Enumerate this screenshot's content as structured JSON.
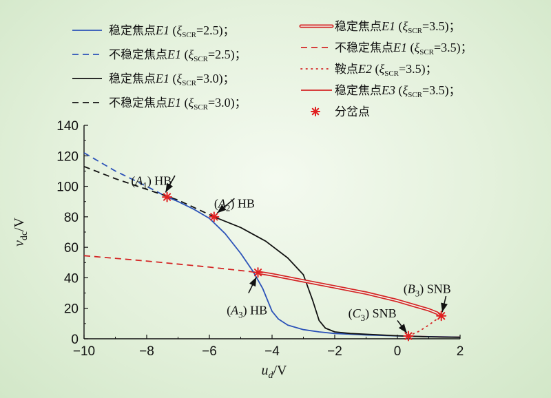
{
  "chart_data": {
    "type": "line",
    "xlabel": "u_d/V",
    "ylabel": "v_dc/V",
    "xlim": [
      -10,
      2
    ],
    "ylim": [
      0,
      140
    ],
    "xticks": [
      -10,
      -8,
      -6,
      -4,
      -2,
      0,
      2
    ],
    "yticks": [
      0,
      20,
      40,
      60,
      80,
      100,
      120,
      140
    ],
    "grid": false,
    "legend_position": "top",
    "series": [
      {
        "name": "稳定焦点E1 (ξSCR=2.5)；",
        "color": "#2b52b8",
        "style": "solid",
        "x": [
          -7.35,
          -7.0,
          -6.5,
          -6.0,
          -5.5,
          -5.0,
          -4.6,
          -4.3,
          -4.0,
          -3.8,
          -3.5,
          -3.0,
          -2.5,
          -2.0,
          -1.5,
          -1.0,
          -0.5,
          0.0,
          0.5,
          1.0,
          1.5,
          2.0
        ],
        "y": [
          93,
          90,
          85,
          79,
          69,
          56,
          44,
          33,
          18,
          13,
          9,
          6,
          4.5,
          3.5,
          3.0,
          2.5,
          2.2,
          1.9,
          1.6,
          1.4,
          1.2,
          1.0
        ]
      },
      {
        "name": "不稳定焦点E1 (ξSCR=2.5)；",
        "color": "#2b52b8",
        "style": "dashed",
        "x": [
          -10,
          -9,
          -8,
          -7.35
        ],
        "y": [
          122,
          110,
          100,
          93
        ]
      },
      {
        "name": "稳定焦点E1 (ξSCR=3.0)；",
        "color": "#111111",
        "style": "solid",
        "x": [
          -5.85,
          -5.0,
          -4.2,
          -3.5,
          -3.0,
          -2.7,
          -2.5,
          -2.3,
          -2.0,
          -1.5,
          -1.0,
          -0.5,
          0.0,
          0.5,
          1.0,
          1.5,
          2.0
        ],
        "y": [
          80,
          73,
          64,
          53,
          42,
          25,
          12,
          7,
          4.5,
          3.5,
          3.0,
          2.5,
          2.0,
          1.6,
          1.3,
          1.1,
          1.0
        ]
      },
      {
        "name": "不稳定焦点E1 (ξSCR=3.0)；",
        "color": "#111111",
        "style": "dashed",
        "x": [
          -10,
          -9,
          -8,
          -7,
          -5.85
        ],
        "y": [
          113,
          105,
          98,
          91,
          80
        ]
      },
      {
        "name": "稳定焦点E1 (ξSCR=3.5)；",
        "color": "#d42525",
        "style": "double",
        "x": [
          -4.45,
          -4.0,
          -3.0,
          -2.0,
          -1.0,
          0.0,
          0.5,
          1.0,
          1.25,
          1.4
        ],
        "y": [
          43.5,
          42,
          38,
          34,
          30,
          25,
          22,
          19,
          17,
          15
        ]
      },
      {
        "name": "不稳定焦点E1 (ξSCR=3.5)；",
        "color": "#d42525",
        "style": "dashed",
        "x": [
          -10,
          -8,
          -6,
          -4.45
        ],
        "y": [
          54.5,
          51,
          47,
          43.5
        ]
      },
      {
        "name": "鞍点E2 (ξSCR=3.5)；",
        "color": "#d42525",
        "style": "dotted",
        "x": [
          0.35,
          0.7,
          1.0,
          1.4
        ],
        "y": [
          1.8,
          5,
          9,
          15
        ]
      },
      {
        "name": "稳定焦点E3 (ξSCR=3.5)；",
        "color": "#d42525",
        "style": "solid",
        "x": [
          0.35,
          0.8,
          1.2,
          1.6,
          2.0
        ],
        "y": [
          1.8,
          1.5,
          1.3,
          1.2,
          1.1
        ]
      }
    ],
    "bifurcation_points": {
      "name": "分岔点",
      "color": "#e02020",
      "points": [
        {
          "x": -7.35,
          "y": 93
        },
        {
          "x": -5.85,
          "y": 80
        },
        {
          "x": -4.45,
          "y": 43.5
        },
        {
          "x": 1.4,
          "y": 15
        },
        {
          "x": 0.35,
          "y": 1.8
        }
      ]
    },
    "annotations": [
      {
        "label": "(A1) HB",
        "text_at": [
          -7.85,
          101
        ],
        "arrow_from": [
          -7.1,
          107
        ],
        "arrow_to": [
          -7.4,
          96
        ]
      },
      {
        "label": "(A2) HB",
        "text_at": [
          -5.2,
          86
        ],
        "arrow_from": [
          -5.2,
          92
        ],
        "arrow_to": [
          -5.75,
          82.5
        ]
      },
      {
        "label": "(A3) HB",
        "text_at": [
          -4.8,
          16
        ],
        "arrow_from": [
          -4.75,
          30
        ],
        "arrow_to": [
          -4.5,
          40.5
        ]
      },
      {
        "label": "(B3) SNB",
        "text_at": [
          0.95,
          30
        ],
        "arrow_from": [
          1.55,
          28
        ],
        "arrow_to": [
          1.43,
          17.5
        ]
      },
      {
        "label": "(C3) SNB",
        "text_at": [
          -0.8,
          14
        ],
        "arrow_from": [
          0.0,
          12
        ],
        "arrow_to": [
          0.3,
          3.8
        ]
      }
    ]
  }
}
